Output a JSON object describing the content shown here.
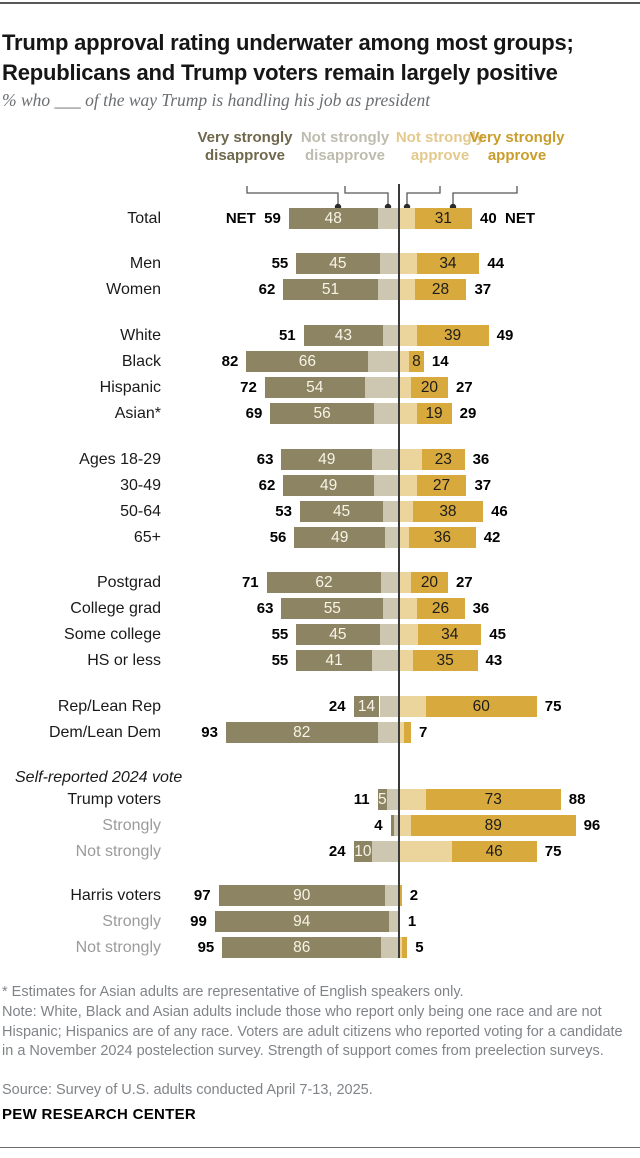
{
  "header": {
    "title_line1": "Trump approval rating underwater among most groups;",
    "title_line2": "Republicans and Trump voters remain largely positive",
    "subtitle": "% who ___ of the way Trump is handling his job as president"
  },
  "colors": {
    "very_strongly_disapprove": "#8c8463",
    "not_strongly_disapprove": "#cdc6b1",
    "not_strongly_approve": "#ebd59c",
    "very_strongly_approve": "#d8a93c",
    "legend_text": [
      "#6f684c",
      "#bebcae",
      "#e3c98c",
      "#c99d2b"
    ]
  },
  "chart_data": {
    "type": "bar",
    "variant": "diverging-stacked",
    "unit": "%",
    "series_names": [
      "Very strongly disapprove",
      "Not strongly disapprove",
      "Not strongly approve",
      "Very strongly approve"
    ],
    "section_label": "Self-reported 2024 vote",
    "rows": [
      {
        "type": "bar",
        "label": "Total",
        "muted": false,
        "net_disapprove": 59,
        "very_strongly_disapprove": 48,
        "not_strongly_disapprove": 11,
        "not_strongly_approve": 9,
        "very_strongly_approve": 31,
        "net_approve": 40,
        "net_disapprove_label": "NET  59",
        "net_approve_label": "40  NET",
        "bar_label_disapprove": "48",
        "bar_label_approve": "31"
      },
      {
        "type": "bar",
        "label": "Men",
        "muted": false,
        "net_disapprove": 55,
        "very_strongly_disapprove": 45,
        "not_strongly_disapprove": 10,
        "not_strongly_approve": 10,
        "very_strongly_approve": 34,
        "net_approve": 44,
        "net_disapprove_label": "55",
        "net_approve_label": "44",
        "bar_label_disapprove": "45",
        "bar_label_approve": "34"
      },
      {
        "type": "bar",
        "label": "Women",
        "muted": false,
        "net_disapprove": 62,
        "very_strongly_disapprove": 51,
        "not_strongly_disapprove": 11,
        "not_strongly_approve": 9,
        "very_strongly_approve": 28,
        "net_approve": 37,
        "net_disapprove_label": "62",
        "net_approve_label": "37",
        "bar_label_disapprove": "51",
        "bar_label_approve": "28"
      },
      {
        "type": "bar",
        "label": "White",
        "muted": false,
        "net_disapprove": 51,
        "very_strongly_disapprove": 43,
        "not_strongly_disapprove": 8,
        "not_strongly_approve": 10,
        "very_strongly_approve": 39,
        "net_approve": 49,
        "net_disapprove_label": "51",
        "net_approve_label": "49",
        "bar_label_disapprove": "43",
        "bar_label_approve": "39"
      },
      {
        "type": "bar",
        "label": "Black",
        "muted": false,
        "net_disapprove": 82,
        "very_strongly_disapprove": 66,
        "not_strongly_disapprove": 16,
        "not_strongly_approve": 6,
        "very_strongly_approve": 8,
        "net_approve": 14,
        "net_disapprove_label": "82",
        "net_approve_label": "14",
        "bar_label_disapprove": "66",
        "bar_label_approve": "8"
      },
      {
        "type": "bar",
        "label": "Hispanic",
        "muted": false,
        "net_disapprove": 72,
        "very_strongly_disapprove": 54,
        "not_strongly_disapprove": 18,
        "not_strongly_approve": 7,
        "very_strongly_approve": 20,
        "net_approve": 27,
        "net_disapprove_label": "72",
        "net_approve_label": "27",
        "bar_label_disapprove": "54",
        "bar_label_approve": "20"
      },
      {
        "type": "bar",
        "label": "Asian*",
        "muted": false,
        "net_disapprove": 69,
        "very_strongly_disapprove": 56,
        "not_strongly_disapprove": 13,
        "not_strongly_approve": 10,
        "very_strongly_approve": 19,
        "net_approve": 29,
        "net_disapprove_label": "69",
        "net_approve_label": "29",
        "bar_label_disapprove": "56",
        "bar_label_approve": "19"
      },
      {
        "type": "bar",
        "label": "Ages 18-29",
        "muted": false,
        "net_disapprove": 63,
        "very_strongly_disapprove": 49,
        "not_strongly_disapprove": 14,
        "not_strongly_approve": 13,
        "very_strongly_approve": 23,
        "net_approve": 36,
        "net_disapprove_label": "63",
        "net_approve_label": "36",
        "bar_label_disapprove": "49",
        "bar_label_approve": "23"
      },
      {
        "type": "bar",
        "label": "30-49",
        "muted": false,
        "net_disapprove": 62,
        "very_strongly_disapprove": 49,
        "not_strongly_disapprove": 13,
        "not_strongly_approve": 10,
        "very_strongly_approve": 27,
        "net_approve": 37,
        "net_disapprove_label": "62",
        "net_approve_label": "37",
        "bar_label_disapprove": "49",
        "bar_label_approve": "27"
      },
      {
        "type": "bar",
        "label": "50-64",
        "muted": false,
        "net_disapprove": 53,
        "very_strongly_disapprove": 45,
        "not_strongly_disapprove": 8,
        "not_strongly_approve": 8,
        "very_strongly_approve": 38,
        "net_approve": 46,
        "net_disapprove_label": "53",
        "net_approve_label": "46",
        "bar_label_disapprove": "45",
        "bar_label_approve": "38"
      },
      {
        "type": "bar",
        "label": "65+",
        "muted": false,
        "net_disapprove": 56,
        "very_strongly_disapprove": 49,
        "not_strongly_disapprove": 7,
        "not_strongly_approve": 6,
        "very_strongly_approve": 36,
        "net_approve": 42,
        "net_disapprove_label": "56",
        "net_approve_label": "42",
        "bar_label_disapprove": "49",
        "bar_label_approve": "36"
      },
      {
        "type": "bar",
        "label": "Postgrad",
        "muted": false,
        "net_disapprove": 71,
        "very_strongly_disapprove": 62,
        "not_strongly_disapprove": 9,
        "not_strongly_approve": 7,
        "very_strongly_approve": 20,
        "net_approve": 27,
        "net_disapprove_label": "71",
        "net_approve_label": "27",
        "bar_label_disapprove": "62",
        "bar_label_approve": "20"
      },
      {
        "type": "bar",
        "label": "College grad",
        "muted": false,
        "net_disapprove": 63,
        "very_strongly_disapprove": 55,
        "not_strongly_disapprove": 8,
        "not_strongly_approve": 10,
        "very_strongly_approve": 26,
        "net_approve": 36,
        "net_disapprove_label": "63",
        "net_approve_label": "36",
        "bar_label_disapprove": "55",
        "bar_label_approve": "26"
      },
      {
        "type": "bar",
        "label": "Some college",
        "muted": false,
        "net_disapprove": 55,
        "very_strongly_disapprove": 45,
        "not_strongly_disapprove": 10,
        "not_strongly_approve": 11,
        "very_strongly_approve": 34,
        "net_approve": 45,
        "net_disapprove_label": "55",
        "net_approve_label": "45",
        "bar_label_disapprove": "45",
        "bar_label_approve": "34"
      },
      {
        "type": "bar",
        "label": "HS or less",
        "muted": false,
        "net_disapprove": 55,
        "very_strongly_disapprove": 41,
        "not_strongly_disapprove": 14,
        "not_strongly_approve": 8,
        "very_strongly_approve": 35,
        "net_approve": 43,
        "net_disapprove_label": "55",
        "net_approve_label": "43",
        "bar_label_disapprove": "41",
        "bar_label_approve": "35"
      },
      {
        "type": "bar",
        "label": "Rep/Lean Rep",
        "muted": false,
        "net_disapprove": 24,
        "very_strongly_disapprove": 14,
        "not_strongly_disapprove": 10,
        "not_strongly_approve": 15,
        "very_strongly_approve": 60,
        "net_approve": 75,
        "net_disapprove_label": "24",
        "net_approve_label": "75",
        "bar_label_disapprove": "14",
        "bar_label_approve": "60"
      },
      {
        "type": "bar",
        "label": "Dem/Lean Dem",
        "muted": false,
        "net_disapprove": 93,
        "very_strongly_disapprove": 82,
        "not_strongly_disapprove": 11,
        "not_strongly_approve": 3,
        "very_strongly_approve": 4,
        "net_approve": 7,
        "net_disapprove_label": "93",
        "net_approve_label": "7",
        "bar_label_disapprove": "82",
        "bar_label_approve": ""
      },
      {
        "type": "section",
        "label": "Self-reported 2024 vote"
      },
      {
        "type": "bar",
        "label": "Trump voters",
        "muted": false,
        "net_disapprove": 11,
        "very_strongly_disapprove": 5,
        "not_strongly_disapprove": 6,
        "not_strongly_approve": 15,
        "very_strongly_approve": 73,
        "net_approve": 88,
        "net_disapprove_label": "11",
        "net_approve_label": "88",
        "bar_label_disapprove": "5",
        "bar_label_approve": "73"
      },
      {
        "type": "bar",
        "label": "Strongly",
        "muted": true,
        "net_disapprove": 4,
        "very_strongly_disapprove": 2,
        "not_strongly_disapprove": 2,
        "not_strongly_approve": 7,
        "very_strongly_approve": 89,
        "net_approve": 96,
        "net_disapprove_label": "4",
        "net_approve_label": "96",
        "bar_label_disapprove": "",
        "bar_label_approve": "89"
      },
      {
        "type": "bar",
        "label": "Not strongly",
        "muted": true,
        "net_disapprove": 24,
        "very_strongly_disapprove": 10,
        "not_strongly_disapprove": 14,
        "not_strongly_approve": 29,
        "very_strongly_approve": 46,
        "net_approve": 75,
        "net_disapprove_label": "24",
        "net_approve_label": "75",
        "bar_label_disapprove": "10",
        "bar_label_approve": "46"
      },
      {
        "type": "bar",
        "label": "Harris voters",
        "muted": false,
        "net_disapprove": 97,
        "very_strongly_disapprove": 90,
        "not_strongly_disapprove": 7,
        "not_strongly_approve": 1,
        "very_strongly_approve": 1,
        "net_approve": 2,
        "net_disapprove_label": "97",
        "net_approve_label": "2",
        "bar_label_disapprove": "90",
        "bar_label_approve": ""
      },
      {
        "type": "bar",
        "label": "Strongly",
        "muted": true,
        "net_disapprove": 99,
        "very_strongly_disapprove": 94,
        "not_strongly_disapprove": 5,
        "not_strongly_approve": 0,
        "very_strongly_approve": 1,
        "net_approve": 1,
        "net_disapprove_label": "99",
        "net_approve_label": "1",
        "bar_label_disapprove": "94",
        "bar_label_approve": ""
      },
      {
        "type": "bar",
        "label": "Not strongly",
        "muted": true,
        "net_disapprove": 95,
        "very_strongly_disapprove": 86,
        "not_strongly_disapprove": 9,
        "not_strongly_approve": 2,
        "very_strongly_approve": 3,
        "net_approve": 5,
        "net_disapprove_label": "95",
        "net_approve_label": "5",
        "bar_label_disapprove": "86",
        "bar_label_approve": ""
      }
    ]
  },
  "footnotes": [
    "* Estimates for Asian adults are representative of English speakers only.",
    "Note: White, Black and Asian adults include those who report only being one race and are not Hispanic; Hispanics are of any race. Voters are adult citizens who reported voting for a candidate in a November 2024 postelection survey. Strength of support comes from preelection surveys.",
    "Source: Survey of U.S. adults conducted April 7-13, 2025."
  ],
  "brand": "PEW RESEARCH CENTER"
}
